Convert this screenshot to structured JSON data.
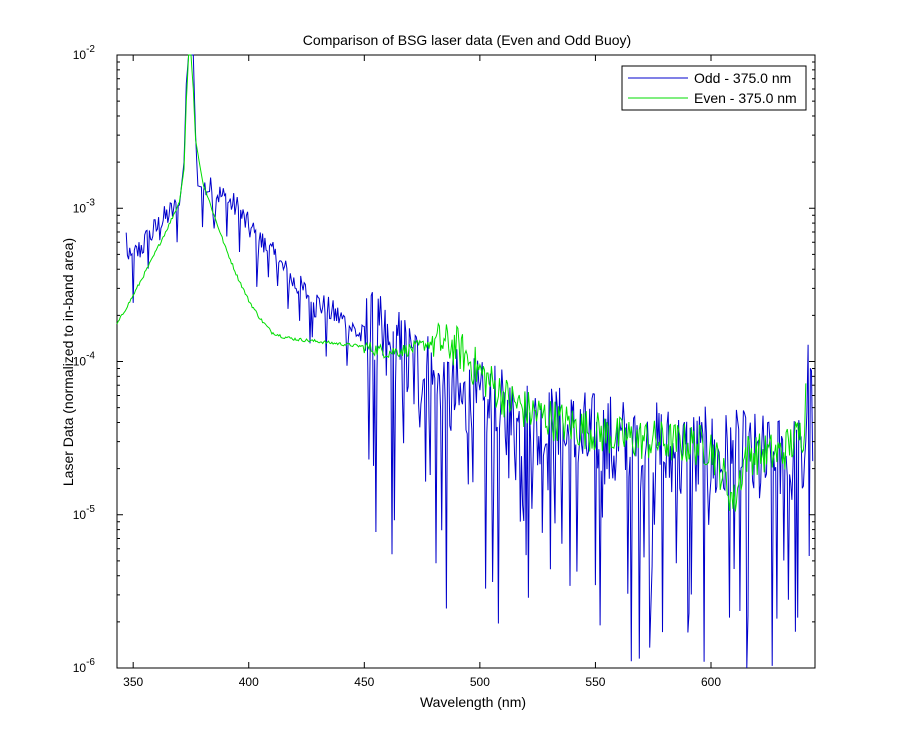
{
  "chart_data": {
    "type": "line",
    "title": "Comparison of BSG laser data (Even and Odd Buoy)",
    "xlabel": "Wavelength (nm)",
    "ylabel": "Laser Data (normalized to in-band area)",
    "xlim": [
      343,
      645
    ],
    "ylim": [
      1e-06,
      0.01
    ],
    "yscale": "log",
    "grid": false,
    "legend_position": "top-right",
    "x_ticks": [
      350,
      400,
      450,
      500,
      550,
      600
    ],
    "x_tick_labels": [
      "350",
      "400",
      "450",
      "500",
      "550",
      "600"
    ],
    "y_ticks": [
      1e-06,
      1e-05,
      0.0001,
      0.001,
      0.01
    ],
    "y_tick_labels": [
      {
        "base": "10",
        "exp": "-6"
      },
      {
        "base": "10",
        "exp": "-5"
      },
      {
        "base": "10",
        "exp": "-4"
      },
      {
        "base": "10",
        "exp": "-3"
      },
      {
        "base": "10",
        "exp": "-2"
      }
    ],
    "series": [
      {
        "name": "Odd - 375.0 nm",
        "color": "#0000cc",
        "style": "noisy",
        "anchors": [
          [
            347,
            0.00065
          ],
          [
            348,
            0.00044
          ],
          [
            352,
            0.00052
          ],
          [
            358,
            0.00068
          ],
          [
            365,
            0.0009
          ],
          [
            370,
            0.00105
          ],
          [
            372,
            0.002
          ],
          [
            373,
            0.0065
          ],
          [
            374,
            0.01
          ],
          [
            376,
            0.01
          ],
          [
            377,
            0.003
          ],
          [
            378,
            0.0014
          ],
          [
            385,
            0.0013
          ],
          [
            395,
            0.001
          ],
          [
            400,
            0.00075
          ],
          [
            410,
            0.0005
          ],
          [
            420,
            0.00032
          ],
          [
            430,
            0.00024
          ],
          [
            440,
            0.00019
          ],
          [
            450,
            0.00014
          ],
          [
            460,
            0.00011
          ],
          [
            470,
            9e-05
          ],
          [
            480,
            7e-05
          ],
          [
            490,
            5.5e-05
          ],
          [
            500,
            4.5e-05
          ],
          [
            520,
            3.5e-05
          ],
          [
            540,
            3e-05
          ],
          [
            560,
            2.7e-05
          ],
          [
            580,
            2.4e-05
          ],
          [
            600,
            2.2e-05
          ],
          [
            620,
            2.1e-05
          ],
          [
            640,
            2e-05
          ],
          [
            643,
            0.00014
          ],
          [
            644,
            1.5e-05
          ]
        ],
        "noise": 1.2
      },
      {
        "name": "Even - 375.0 nm",
        "color": "#00dd00",
        "style": "smooth",
        "anchors": [
          [
            343,
            0.000175
          ],
          [
            350,
            0.00027
          ],
          [
            358,
            0.00046
          ],
          [
            365,
            0.00075
          ],
          [
            370,
            0.0011
          ],
          [
            372,
            0.0018
          ],
          [
            373,
            0.005
          ],
          [
            374,
            0.01
          ],
          [
            375,
            0.01
          ],
          [
            376,
            0.006
          ],
          [
            377,
            0.0028
          ],
          [
            380,
            0.0015
          ],
          [
            385,
            0.0009
          ],
          [
            390,
            0.00055
          ],
          [
            395,
            0.00036
          ],
          [
            400,
            0.00025
          ],
          [
            405,
            0.00019
          ],
          [
            410,
            0.000155
          ],
          [
            415,
            0.000145
          ],
          [
            420,
            0.00014
          ],
          [
            430,
            0.000135
          ],
          [
            440,
            0.00013
          ],
          [
            450,
            0.000125
          ],
          [
            460,
            0.000115
          ],
          [
            470,
            0.00012
          ],
          [
            480,
            0.000135
          ],
          [
            490,
            0.000125
          ],
          [
            500,
            8.5e-05
          ],
          [
            510,
            6e-05
          ],
          [
            520,
            4.8e-05
          ],
          [
            540,
            3.8e-05
          ],
          [
            560,
            3.2e-05
          ],
          [
            580,
            3e-05
          ],
          [
            600,
            2.8e-05
          ],
          [
            610,
            1.2e-05
          ],
          [
            615,
            2.5e-05
          ],
          [
            630,
            2.5e-05
          ],
          [
            640,
            3.5e-05
          ],
          [
            641,
            6e-05
          ]
        ],
        "noise": 0.35
      }
    ]
  }
}
